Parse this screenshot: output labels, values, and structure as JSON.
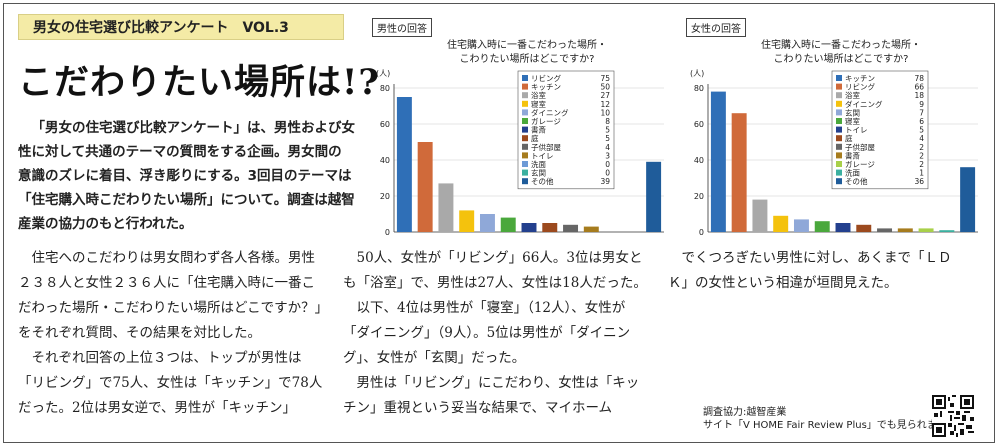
{
  "series_label": "男女の住宅選び比較アンケート　VOL.3",
  "headline": "こだわりたい場所は!?",
  "lead": "「男女の住宅選び比較アンケート」は、男性および女性に対して共通のテーマの質問をする企画。男女間の意識のズレに着目、浮き彫りにする。3回目のテーマは「住宅購入時こだわりたい場所」について。調査は越智産業の協力のもと行われた。",
  "body": {
    "col1": [
      "住宅へのこだわりは男女問わず各人各様。男性２３８人と女性２３６人に「住宅購入時に一番こだわった場所・こだわりたい場所はどこですか？」をそれぞれ質問、その結果を対比した。",
      "それぞれ回答の上位３つは、トップが男性は「リビング」で75人、女性は「キッチン」で78人だった。2位は男女逆で、男性が「キッチン」"
    ],
    "col2": [
      "50人、女性が「リビング」66人。3位は男女とも「浴室」で、男性は27人、女性は18人だった。",
      "以下、4位は男性が「寝室」（12人）、女性が「ダイニング」（9人）。5位は男性が「ダイニング」、女性が「玄関」だった。",
      "男性は「リビング」にこだわり、女性は「キッチン」重視という妥当な結果で、マイホーム"
    ],
    "col3": [
      "でくつろぎたい男性に対し、あくまで「ＬＤＫ」の女性という相違が垣間見えた。"
    ]
  },
  "credit": {
    "line1": "調査協力:越智産業",
    "line2": "サイト「V HOME Fair Review Plus」でも見られます"
  },
  "chart_data": [
    {
      "type": "bar",
      "tag": "男性の回答",
      "title": [
        "住宅購入時に一番こだわった場所・",
        "こわりたい場所はどこですか?"
      ],
      "ylabel": "(人)",
      "ylim": [
        0,
        80
      ],
      "yticks": [
        0,
        20,
        40,
        60,
        80
      ],
      "categories": [
        "リビング",
        "キッチン",
        "浴室",
        "寝室",
        "ダイニング",
        "ガレージ",
        "書斎",
        "庭",
        "子供部屋",
        "トイレ",
        "洗面",
        "玄関",
        "その他"
      ],
      "values": [
        75,
        50,
        27,
        12,
        10,
        8,
        5,
        5,
        4,
        3,
        0,
        0,
        39
      ],
      "colors": [
        "#2f6fb7",
        "#d06a3a",
        "#a9a9a9",
        "#f4c20d",
        "#8fa8d8",
        "#4aa83c",
        "#23408e",
        "#9c4a1e",
        "#666666",
        "#a67c1e",
        "#6d9ad6",
        "#3bb0a0",
        "#1f5c9a"
      ],
      "legend": "right"
    },
    {
      "type": "bar",
      "tag": "女性の回答",
      "title": [
        "住宅購入時に一番こだわった場所・",
        "こわりたい場所はどこですか?"
      ],
      "ylabel": "(人)",
      "ylim": [
        0,
        80
      ],
      "yticks": [
        0,
        20,
        40,
        60,
        80
      ],
      "categories": [
        "キッチン",
        "リビング",
        "浴室",
        "ダイニング",
        "玄関",
        "寝室",
        "トイレ",
        "庭",
        "子供部屋",
        "書斎",
        "ガレージ",
        "洗面",
        "その他"
      ],
      "values": [
        78,
        66,
        18,
        9,
        7,
        6,
        5,
        4,
        2,
        2,
        2,
        1,
        36
      ],
      "colors": [
        "#2f6fb7",
        "#d06a3a",
        "#a9a9a9",
        "#f4c20d",
        "#8fa8d8",
        "#4aa83c",
        "#23408e",
        "#9c4a1e",
        "#666666",
        "#a67c1e",
        "#a8d04a",
        "#3bb0a0",
        "#1f5c9a"
      ],
      "legend": "right"
    }
  ]
}
